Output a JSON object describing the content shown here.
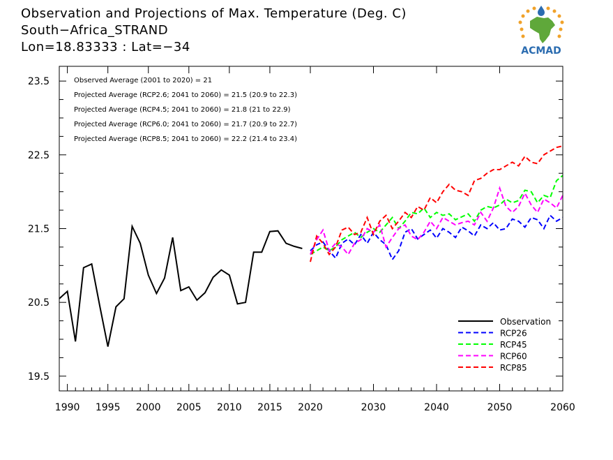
{
  "header": {
    "title": "Observation and Projections of Max. Temperature (Deg. C)",
    "location": "South−Africa_STRAND",
    "coords": "Lon=18.83333 : Lat=−34"
  },
  "logo": {
    "text": "ACMAD",
    "colors": {
      "africa": "#5fa83a",
      "sun": "#f0a22a",
      "drop": "#2b6cb0",
      "text": "#2b6cb0"
    }
  },
  "chart_data": {
    "type": "line",
    "title": "Observation and Projections of Max. Temperature (Deg. C)",
    "xlim": [
      1989,
      2060
    ],
    "ylim": [
      19.3,
      23.7
    ],
    "x_ticks": [
      1990,
      1995,
      2000,
      2005,
      2010,
      2015,
      2020,
      2030,
      2040,
      2050,
      2060
    ],
    "y_ticks": [
      19.5,
      20.5,
      21.5,
      22.5,
      23.5
    ],
    "x_tick_labels": [
      "1990",
      "1995",
      "2000",
      "2005",
      "2010",
      "2015",
      "2020",
      "2030",
      "2040",
      "2050",
      "2060"
    ],
    "y_tick_labels": [
      "19.5",
      "20.5",
      "21.5",
      "22.5",
      "23.5"
    ],
    "annotations": [
      "Observed Average (2001 to 2020) = 21",
      "Projected Average (RCP2.6; 2041 to 2060) = 21.5 (20.9 to 22.3)",
      "Projected Average (RCP4.5; 2041 to 2060) = 21.8 (21 to 22.9)",
      "Projected Average (RCP6.0; 2041 to 2060) = 21.7 (20.9 to 22.7)",
      "Projected Average (RCP8.5; 2041 to 2060) = 22.2 (21.4 to 23.4)"
    ],
    "legend_position": "bottom-right",
    "series": [
      {
        "name": "Observation",
        "color": "#000000",
        "dashed": false,
        "x": [
          1989,
          1990,
          1991,
          1992,
          1993,
          1994,
          1995,
          1996,
          1997,
          1998,
          1999,
          2000,
          2001,
          2002,
          2003,
          2004,
          2005,
          2006,
          2007,
          2008,
          2009,
          2010,
          2011,
          2012,
          2013,
          2014,
          2015,
          2016,
          2017,
          2018,
          2019
        ],
        "y": [
          20.55,
          20.65,
          19.97,
          20.97,
          21.02,
          20.45,
          19.9,
          20.44,
          20.55,
          21.53,
          21.3,
          20.87,
          20.62,
          20.83,
          21.38,
          20.66,
          20.71,
          20.53,
          20.63,
          20.84,
          20.94,
          20.87,
          20.48,
          20.5,
          21.18,
          21.18,
          21.46,
          21.47,
          21.3,
          21.26,
          21.23
        ]
      },
      {
        "name": "RCP26",
        "color": "#0000ff",
        "dashed": true,
        "x": [
          2020,
          2021,
          2022,
          2023,
          2024,
          2025,
          2026,
          2027,
          2028,
          2029,
          2030,
          2031,
          2032,
          2033,
          2034,
          2035,
          2036,
          2037,
          2038,
          2039,
          2040,
          2041,
          2042,
          2043,
          2044,
          2045,
          2046,
          2047,
          2048,
          2049,
          2050,
          2051,
          2052,
          2053,
          2054,
          2055,
          2056,
          2057,
          2058,
          2059,
          2060
        ],
        "y": [
          21.2,
          21.28,
          21.32,
          21.2,
          21.1,
          21.3,
          21.36,
          21.28,
          21.42,
          21.3,
          21.45,
          21.35,
          21.28,
          21.08,
          21.2,
          21.45,
          21.5,
          21.36,
          21.42,
          21.48,
          21.37,
          21.5,
          21.45,
          21.38,
          21.52,
          21.47,
          21.4,
          21.55,
          21.5,
          21.58,
          21.48,
          21.5,
          21.63,
          21.6,
          21.52,
          21.65,
          21.62,
          21.5,
          21.68,
          21.6,
          21.65
        ]
      },
      {
        "name": "RCP45",
        "color": "#00ff00",
        "dashed": true,
        "x": [
          2020,
          2021,
          2022,
          2023,
          2024,
          2025,
          2026,
          2027,
          2028,
          2029,
          2030,
          2031,
          2032,
          2033,
          2034,
          2035,
          2036,
          2037,
          2038,
          2039,
          2040,
          2041,
          2042,
          2043,
          2044,
          2045,
          2046,
          2047,
          2048,
          2049,
          2050,
          2051,
          2052,
          2053,
          2054,
          2055,
          2056,
          2057,
          2058,
          2059,
          2060
        ],
        "y": [
          21.15,
          21.2,
          21.25,
          21.2,
          21.25,
          21.35,
          21.4,
          21.45,
          21.38,
          21.45,
          21.5,
          21.45,
          21.55,
          21.65,
          21.5,
          21.6,
          21.72,
          21.7,
          21.78,
          21.65,
          21.72,
          21.68,
          21.7,
          21.62,
          21.66,
          21.7,
          21.6,
          21.75,
          21.8,
          21.78,
          21.82,
          21.9,
          21.85,
          21.88,
          22.02,
          22.0,
          21.85,
          21.95,
          21.92,
          22.15,
          22.22
        ]
      },
      {
        "name": "RCP60",
        "color": "#ff00ff",
        "dashed": true,
        "x": [
          2020,
          2021,
          2022,
          2023,
          2024,
          2025,
          2026,
          2027,
          2028,
          2029,
          2030,
          2031,
          2032,
          2033,
          2034,
          2035,
          2036,
          2037,
          2038,
          2039,
          2040,
          2041,
          2042,
          2043,
          2044,
          2045,
          2046,
          2047,
          2048,
          2049,
          2050,
          2051,
          2052,
          2053,
          2054,
          2055,
          2056,
          2057,
          2058,
          2059,
          2060
        ],
        "y": [
          21.15,
          21.35,
          21.48,
          21.2,
          21.3,
          21.25,
          21.15,
          21.3,
          21.35,
          21.5,
          21.45,
          21.55,
          21.25,
          21.38,
          21.5,
          21.55,
          21.4,
          21.35,
          21.45,
          21.6,
          21.5,
          21.65,
          21.6,
          21.55,
          21.58,
          21.6,
          21.55,
          21.72,
          21.6,
          21.78,
          22.05,
          21.8,
          21.72,
          21.8,
          21.98,
          21.82,
          21.72,
          21.9,
          21.85,
          21.78,
          21.95
        ]
      },
      {
        "name": "RCP85",
        "color": "#ff0000",
        "dashed": true,
        "x": [
          2020,
          2021,
          2022,
          2023,
          2024,
          2025,
          2026,
          2027,
          2028,
          2029,
          2030,
          2031,
          2032,
          2033,
          2034,
          2035,
          2036,
          2037,
          2038,
          2039,
          2040,
          2041,
          2042,
          2043,
          2044,
          2045,
          2046,
          2047,
          2048,
          2049,
          2050,
          2051,
          2052,
          2053,
          2054,
          2055,
          2056,
          2057,
          2058,
          2059,
          2060
        ],
        "y": [
          21.05,
          21.4,
          21.3,
          21.15,
          21.25,
          21.48,
          21.52,
          21.42,
          21.45,
          21.65,
          21.42,
          21.6,
          21.68,
          21.5,
          21.6,
          21.72,
          21.65,
          21.8,
          21.75,
          21.92,
          21.85,
          22.0,
          22.1,
          22.02,
          22.0,
          21.95,
          22.15,
          22.18,
          22.25,
          22.3,
          22.3,
          22.35,
          22.4,
          22.35,
          22.48,
          22.4,
          22.38,
          22.5,
          22.55,
          22.6,
          22.62
        ]
      }
    ]
  }
}
